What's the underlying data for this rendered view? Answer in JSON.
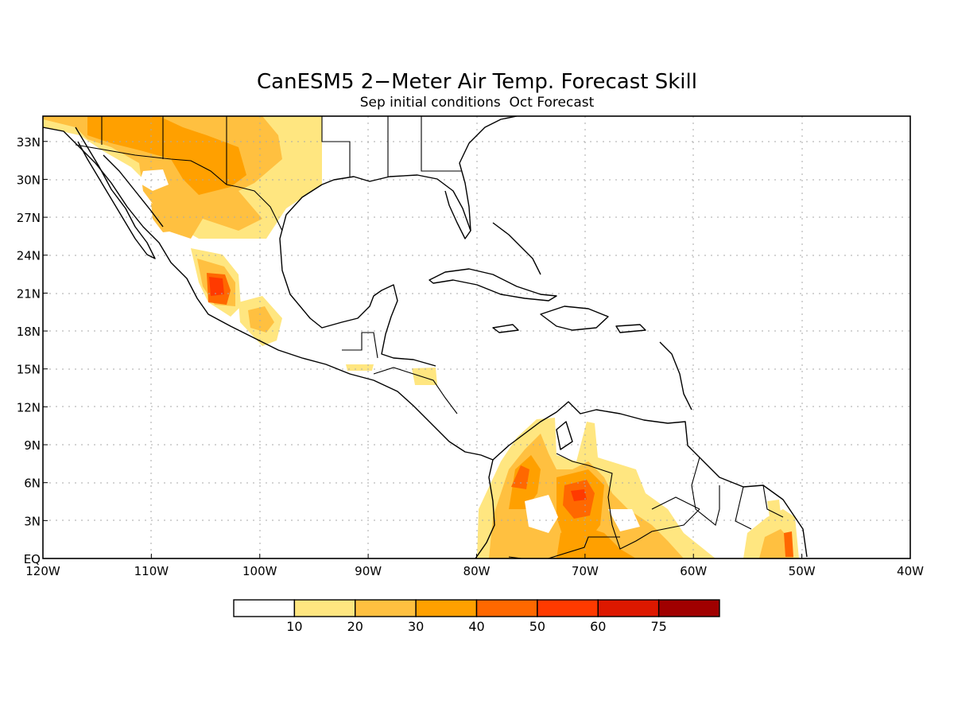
{
  "title": "CanESM5 2−Meter Air Temp. Forecast Skill",
  "subtitle": "Sep initial conditions  Oct Forecast",
  "map": {
    "lon_range": [
      -120,
      -40
    ],
    "lat_range": [
      0,
      35
    ],
    "grid_lines": "dotted",
    "lat_labels": [
      {
        "lat": 33,
        "label": "33N"
      },
      {
        "lat": 30,
        "label": "30N"
      },
      {
        "lat": 27,
        "label": "27N"
      },
      {
        "lat": 24,
        "label": "24N"
      },
      {
        "lat": 21,
        "label": "21N"
      },
      {
        "lat": 18,
        "label": "18N"
      },
      {
        "lat": 15,
        "label": "15N"
      },
      {
        "lat": 12,
        "label": "12N"
      },
      {
        "lat": 9,
        "label": "9N"
      },
      {
        "lat": 6,
        "label": "6N"
      },
      {
        "lat": 3,
        "label": "3N"
      },
      {
        "lat": 0,
        "label": "EQ"
      }
    ],
    "lon_labels": [
      {
        "lon": -120,
        "label": "120W"
      },
      {
        "lon": -110,
        "label": "110W"
      },
      {
        "lon": -100,
        "label": "100W"
      },
      {
        "lon": -90,
        "label": "90W"
      },
      {
        "lon": -80,
        "label": "80W"
      },
      {
        "lon": -70,
        "label": "70W"
      },
      {
        "lon": -60,
        "label": "60W"
      },
      {
        "lon": -50,
        "label": "50W"
      },
      {
        "lon": -40,
        "label": "40W"
      }
    ]
  },
  "legend": {
    "labels": [
      "10",
      "20",
      "30",
      "40",
      "50",
      "60",
      "75"
    ],
    "colors": [
      "#ffffff",
      "#ffe680",
      "#ffc040",
      "#ffa000",
      "#ff6800",
      "#ff3a00",
      "#dd1800",
      "#a00000"
    ]
  }
}
